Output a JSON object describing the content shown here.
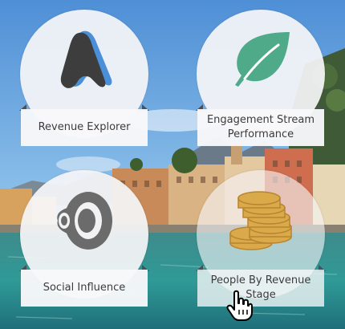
{
  "tiles": [
    {
      "label": "Revenue Explorer",
      "icon": "revenue-explorer-logo-icon",
      "accent": "#4a90d9"
    },
    {
      "label": "Engagement Stream Performance",
      "icon": "leaf-icon",
      "accent": "#4faa8a"
    },
    {
      "label": "Social Influence",
      "icon": "speaker-icon",
      "accent": "#6b6b6b"
    },
    {
      "label": "People By Revenue Stage",
      "icon": "coin-stack-icon",
      "accent": "#d9a94a"
    }
  ],
  "cursor": {
    "icon": "hand-pointer-icon"
  }
}
